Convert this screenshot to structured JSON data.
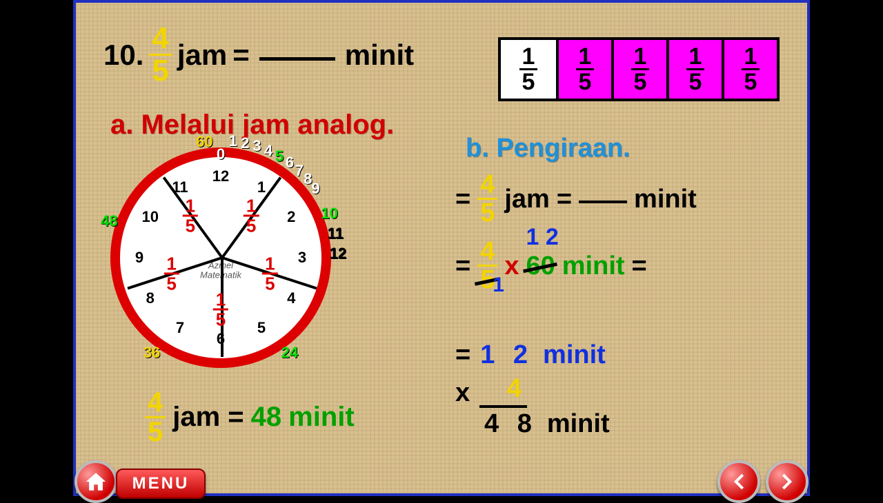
{
  "question": {
    "number": "10.",
    "fraction": {
      "num": "4",
      "den": "5"
    },
    "unit_from": "jam",
    "equals": "=",
    "unit_to": "minit"
  },
  "bar_model": {
    "cells": [
      {
        "num": "1",
        "den": "5",
        "bg": "#ffffff"
      },
      {
        "num": "1",
        "den": "5",
        "bg": "#ff00ff"
      },
      {
        "num": "1",
        "den": "5",
        "bg": "#ff00ff"
      },
      {
        "num": "1",
        "den": "5",
        "bg": "#ff00ff"
      },
      {
        "num": "1",
        "den": "5",
        "bg": "#ff00ff"
      }
    ]
  },
  "subtitle_a": "a. Melalui jam analog.",
  "subtitle_b": "b. Pengiraan.",
  "clock": {
    "ring_color": "#d00000",
    "face_color": "#ffffff",
    "numbers": [
      "12",
      "1",
      "2",
      "3",
      "4",
      "5",
      "6",
      "7",
      "8",
      "9",
      "10",
      "11"
    ],
    "sector_angles": [
      0,
      72,
      144,
      216,
      288
    ],
    "sector_fracs": [
      {
        "num": "1",
        "den": "5"
      },
      {
        "num": "1",
        "den": "5"
      },
      {
        "num": "1",
        "den": "5"
      },
      {
        "num": "1",
        "den": "5"
      },
      {
        "num": "1",
        "den": "5"
      }
    ],
    "brand_top": "Azmel",
    "brand_bottom": "Matematik",
    "perimeter": [
      {
        "label": "60",
        "angle": -8,
        "color": "#f2d400"
      },
      {
        "label": "0",
        "angle": 0,
        "color": "#ffffff",
        "inner": true
      },
      {
        "label": "1",
        "angle": 6,
        "color": "#ffffff"
      },
      {
        "label": "2",
        "angle": 12,
        "color": "#ffffff"
      },
      {
        "label": "3",
        "angle": 18,
        "color": "#ffffff"
      },
      {
        "label": "4",
        "angle": 24,
        "color": "#ffffff"
      },
      {
        "label": "5",
        "angle": 30,
        "color": "#00e000"
      },
      {
        "label": "6",
        "angle": 36,
        "color": "#ffffff"
      },
      {
        "label": "7",
        "angle": 42,
        "color": "#ffffff"
      },
      {
        "label": "8",
        "angle": 48,
        "color": "#ffffff"
      },
      {
        "label": "9",
        "angle": 54,
        "color": "#ffffff"
      },
      {
        "label": "10",
        "angle": 68,
        "color": "#00e000"
      },
      {
        "label": "11",
        "angle": 78,
        "color": "#000000"
      },
      {
        "label": "12",
        "angle": 88,
        "color": "#000000"
      },
      {
        "label": "24",
        "angle": 144,
        "color": "#00e000"
      },
      {
        "label": "36",
        "angle": 216,
        "color": "#f2d400"
      },
      {
        "label": "48",
        "angle": 288,
        "color": "#00e000"
      }
    ]
  },
  "answer_a": {
    "fraction": {
      "num": "4",
      "den": "5"
    },
    "text_jam": "jam =",
    "value": "48",
    "text_minit": "minit"
  },
  "calc": {
    "row1": {
      "eq": "=",
      "frac": {
        "num": "4",
        "den": "5"
      },
      "jam": "jam",
      "eq2": "=",
      "minit": "minit"
    },
    "row2": {
      "eq": "=",
      "frac": {
        "num": "4",
        "den": "5"
      },
      "times": "x",
      "sixty": "60",
      "cancel_top": "1 2",
      "cancel_bot": "1",
      "minit": "minit",
      "eq2": "="
    },
    "row3": {
      "eq": "=",
      "twelve": "1 2",
      "minit": "minit"
    },
    "row4": {
      "times": "x",
      "four": "4"
    },
    "row5": {
      "result": "4 8",
      "minit": "minit"
    }
  },
  "nav": {
    "menu": "MENU"
  }
}
